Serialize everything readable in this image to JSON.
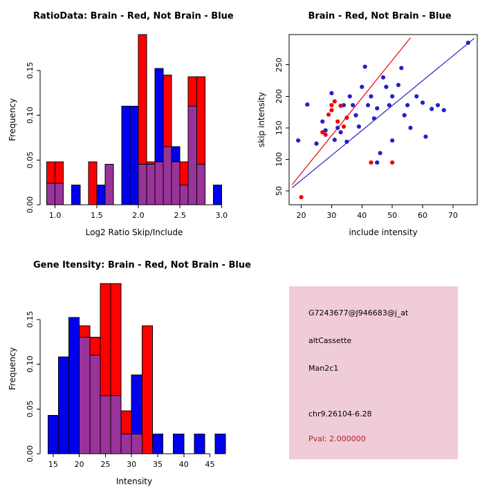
{
  "colors": {
    "brain_red": "#FF0000",
    "not_brain_blue": "#0000EE",
    "scatter_red": "#EE0000",
    "scatter_blue": "#2222CC",
    "overlap_purple": "#993399",
    "info_bg": "#F0CBD8",
    "pval_color": "#B22222"
  },
  "info_panel": {
    "lines": [
      {
        "text": "G7243677@J946683@j_at",
        "color": "#000000"
      },
      {
        "text": "altCassette",
        "color": "#000000"
      },
      {
        "text": "Man2c1",
        "color": "#000000"
      },
      {
        "text": "chr9.26104-6.28",
        "color": "#000000"
      },
      {
        "text": "Pval: 2.000000",
        "color": "#B22222"
      }
    ]
  },
  "chart_data": [
    {
      "id": "ratio-histogram",
      "type": "bar",
      "title": "RatioData: Brain - Red, Not Brain - Blue",
      "xlabel": "Log2 Ratio Skip/Include",
      "ylabel": "Frequency",
      "legend": "Brain = red, Not Brain = blue, overlap = purple",
      "bin_width": 0.1,
      "bin_starts": [
        0.9,
        1.0,
        1.1,
        1.2,
        1.3,
        1.4,
        1.5,
        1.6,
        1.7,
        1.8,
        1.9,
        2.0,
        2.1,
        2.2,
        2.3,
        2.4,
        2.5,
        2.6,
        2.7,
        2.8,
        2.9
      ],
      "series": [
        {
          "name": "Not Brain",
          "color": "#0000EE",
          "values": [
            0.024,
            0.024,
            0,
            0.022,
            0,
            0,
            0.022,
            0.045,
            0,
            0.11,
            0.11,
            0.045,
            0.045,
            0.152,
            0.065,
            0.065,
            0.022,
            0.11,
            0.045,
            0,
            0.022
          ]
        },
        {
          "name": "Brain",
          "color": "#FF0000",
          "values": [
            0.048,
            0.048,
            0,
            0,
            0,
            0.048,
            0,
            0.045,
            0,
            0,
            0,
            0.19,
            0.048,
            0.048,
            0.145,
            0.048,
            0.048,
            0.143,
            0.143,
            0,
            0
          ]
        }
      ],
      "overlap_color": "#993399",
      "xlim": [
        0.82,
        3.08
      ],
      "ylim": [
        0,
        0.19
      ],
      "xticks": [
        1.0,
        1.5,
        2.0,
        2.5,
        3.0
      ],
      "xtick_labels": [
        "1.0",
        "1.5",
        "2.0",
        "2.5",
        "3.0"
      ],
      "yticks": [
        0,
        0.05,
        0.1,
        0.15
      ],
      "ytick_labels": [
        "0.00",
        "0.05",
        "0.10",
        "0.15"
      ],
      "box": false
    },
    {
      "id": "intensity-scatter",
      "type": "scatter",
      "title": "Brain - Red, Not Brain - Blue",
      "xlabel": "include intensity",
      "ylabel": "skip intensity",
      "xlim": [
        16,
        78
      ],
      "ylim": [
        28,
        298
      ],
      "xticks": [
        20,
        30,
        40,
        50,
        60,
        70
      ],
      "xtick_labels": [
        "20",
        "30",
        "40",
        "50",
        "60",
        "70"
      ],
      "yticks": [
        50,
        100,
        150,
        200,
        250
      ],
      "ytick_labels": [
        "50",
        "100",
        "150",
        "200",
        "250"
      ],
      "box": true,
      "series": [
        {
          "name": "Not Brain",
          "color": "#2222CC",
          "points": [
            [
              19,
              130
            ],
            [
              22,
              187
            ],
            [
              25,
              125
            ],
            [
              27,
              160
            ],
            [
              28,
              146
            ],
            [
              30,
              205
            ],
            [
              31,
              131
            ],
            [
              32,
              150
            ],
            [
              33,
              143
            ],
            [
              34,
              186
            ],
            [
              35,
              128
            ],
            [
              36,
              200
            ],
            [
              37,
              186
            ],
            [
              38,
              170
            ],
            [
              39,
              152
            ],
            [
              40,
              215
            ],
            [
              41,
              247
            ],
            [
              42,
              186
            ],
            [
              43,
              200
            ],
            [
              44,
              165
            ],
            [
              45,
              181
            ],
            [
              45,
              95
            ],
            [
              46,
              110
            ],
            [
              47,
              230
            ],
            [
              48,
              215
            ],
            [
              49,
              186
            ],
            [
              50,
              200
            ],
            [
              50,
              130
            ],
            [
              52,
              218
            ],
            [
              53,
              245
            ],
            [
              54,
              170
            ],
            [
              55,
              186
            ],
            [
              56,
              150
            ],
            [
              58,
              200
            ],
            [
              60,
              190
            ],
            [
              61,
              136
            ],
            [
              63,
              180
            ],
            [
              65,
              186
            ],
            [
              67,
              178
            ],
            [
              75,
              285
            ]
          ]
        },
        {
          "name": "Brain",
          "color": "#EE0000",
          "points": [
            [
              20,
              40
            ],
            [
              27,
              143
            ],
            [
              28,
              139
            ],
            [
              29,
              171
            ],
            [
              30,
              186
            ],
            [
              30,
              178
            ],
            [
              31,
              192
            ],
            [
              32,
              160
            ],
            [
              33,
              185
            ],
            [
              34,
              152
            ],
            [
              35,
              166
            ],
            [
              43,
              95
            ],
            [
              50,
              95
            ]
          ]
        }
      ],
      "lines": [
        {
          "name": "brain-fit-line",
          "color": "#EE0000",
          "from": [
            17,
            60
          ],
          "to": [
            56,
            293
          ]
        },
        {
          "name": "not-brain-fit-line",
          "color": "#2222CC",
          "from": [
            17,
            55
          ],
          "to": [
            77,
            292
          ]
        }
      ]
    },
    {
      "id": "gene-histogram",
      "type": "bar",
      "title": "Gene Itensity: Brain - Red, Not Brain - Blue",
      "xlabel": "Intensity",
      "ylabel": "Frequency",
      "legend": "Brain = red, Not Brain = blue, overlap = purple",
      "bin_width": 2,
      "bin_starts": [
        14,
        16,
        18,
        20,
        22,
        24,
        26,
        28,
        30,
        32,
        34,
        36,
        38,
        40,
        42,
        44,
        46
      ],
      "series": [
        {
          "name": "Not Brain",
          "color": "#0000EE",
          "values": [
            0.043,
            0.108,
            0.152,
            0.13,
            0.11,
            0.065,
            0.065,
            0.022,
            0.088,
            0,
            0.022,
            0,
            0.022,
            0,
            0.022,
            0,
            0.022
          ]
        },
        {
          "name": "Brain",
          "color": "#FF0000",
          "values": [
            0,
            0,
            0,
            0.143,
            0.13,
            0.19,
            0.19,
            0.048,
            0.022,
            0.143,
            0,
            0,
            0,
            0,
            0,
            0,
            0
          ]
        }
      ],
      "overlap_color": "#993399",
      "xlim": [
        12.5,
        48.5
      ],
      "ylim": [
        0,
        0.19
      ],
      "xticks": [
        15,
        20,
        25,
        30,
        35,
        40,
        45
      ],
      "xtick_labels": [
        "15",
        "20",
        "25",
        "30",
        "35",
        "40",
        "45"
      ],
      "yticks": [
        0,
        0.05,
        0.1,
        0.15
      ],
      "ytick_labels": [
        "0.00",
        "0.05",
        "0.10",
        "0.15"
      ],
      "box": false
    }
  ]
}
